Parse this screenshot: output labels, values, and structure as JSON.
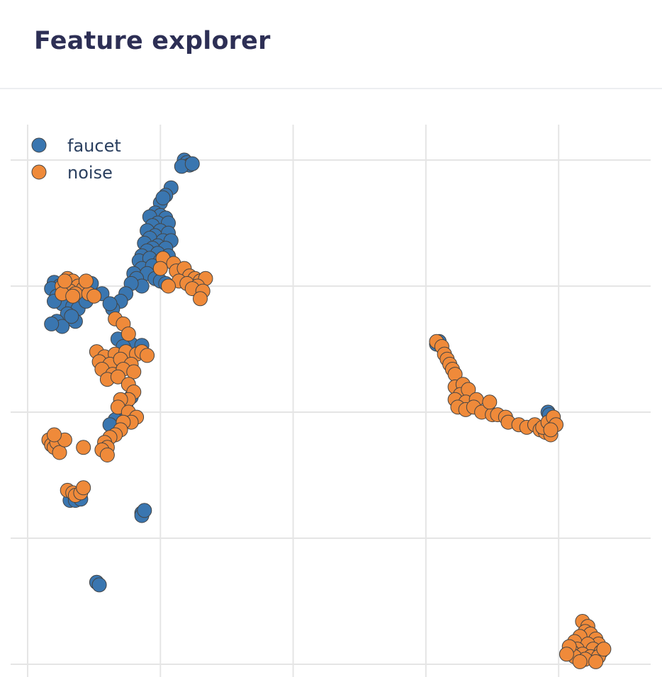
{
  "header": {
    "title": "Feature explorer"
  },
  "colors": {
    "faucet": "#3a76b0",
    "noise": "#ef8a3a",
    "marker_edge": "#444444",
    "grid": "#e5e5e5"
  },
  "chart_data": {
    "type": "scatter",
    "title": "",
    "xlabel": "",
    "ylabel": "",
    "grid": true,
    "legend_position": "top-left",
    "xlim": [
      -0.2,
      4.7
    ],
    "ylim": [
      -0.1,
      4.2
    ],
    "xticks": [
      0,
      1,
      2,
      3,
      4
    ],
    "yticks": [
      0,
      1,
      2,
      3,
      4
    ],
    "series": [
      {
        "name": "faucet",
        "color": "#3a76b0",
        "points": [
          [
            1.18,
            4.0
          ],
          [
            1.2,
            3.98
          ],
          [
            1.22,
            3.96
          ],
          [
            1.16,
            3.95
          ],
          [
            1.24,
            3.97
          ],
          [
            1.08,
            3.78
          ],
          [
            1.04,
            3.72
          ],
          [
            1.0,
            3.66
          ],
          [
            1.02,
            3.7
          ],
          [
            0.96,
            3.58
          ],
          [
            1.0,
            3.56
          ],
          [
            0.92,
            3.55
          ],
          [
            1.04,
            3.54
          ],
          [
            0.98,
            3.5
          ],
          [
            0.94,
            3.48
          ],
          [
            1.06,
            3.5
          ],
          [
            0.9,
            3.44
          ],
          [
            1.0,
            3.44
          ],
          [
            0.96,
            3.4
          ],
          [
            1.06,
            3.42
          ],
          [
            0.92,
            3.38
          ],
          [
            1.02,
            3.36
          ],
          [
            0.88,
            3.34
          ],
          [
            1.08,
            3.36
          ],
          [
            0.98,
            3.32
          ],
          [
            0.94,
            3.3
          ],
          [
            1.04,
            3.3
          ],
          [
            0.9,
            3.28
          ],
          [
            0.86,
            3.24
          ],
          [
            0.98,
            3.26
          ],
          [
            1.06,
            3.24
          ],
          [
            0.84,
            3.2
          ],
          [
            0.92,
            3.22
          ],
          [
            1.0,
            3.2
          ],
          [
            0.86,
            3.14
          ],
          [
            0.94,
            3.16
          ],
          [
            0.8,
            3.1
          ],
          [
            0.9,
            3.1
          ],
          [
            0.82,
            3.06
          ],
          [
            0.96,
            3.06
          ],
          [
            0.86,
            3.0
          ],
          [
            1.0,
            3.04
          ],
          [
            0.78,
            3.02
          ],
          [
            1.04,
            3.02
          ],
          [
            0.74,
            2.94
          ],
          [
            0.7,
            2.88
          ],
          [
            0.64,
            2.82
          ],
          [
            0.56,
            2.94
          ],
          [
            0.62,
            2.86
          ],
          [
            0.2,
            3.03
          ],
          [
            0.24,
            3.0
          ],
          [
            0.18,
            2.98
          ],
          [
            0.28,
            2.96
          ],
          [
            0.22,
            2.92
          ],
          [
            0.3,
            2.9
          ],
          [
            0.26,
            2.86
          ],
          [
            0.34,
            2.84
          ],
          [
            0.2,
            2.88
          ],
          [
            0.38,
            2.82
          ],
          [
            0.44,
            2.88
          ],
          [
            0.48,
            3.02
          ],
          [
            0.3,
            2.78
          ],
          [
            0.34,
            2.74
          ],
          [
            0.22,
            2.72
          ],
          [
            0.36,
            2.72
          ],
          [
            0.26,
            2.68
          ],
          [
            0.18,
            2.7
          ],
          [
            0.33,
            2.76
          ],
          [
            0.68,
            2.58
          ],
          [
            0.78,
            2.54
          ],
          [
            0.86,
            2.53
          ],
          [
            0.72,
            2.52
          ],
          [
            0.78,
            2.12
          ],
          [
            0.74,
            2.06
          ],
          [
            0.7,
            2.0
          ],
          [
            0.66,
            1.94
          ],
          [
            0.62,
            1.9
          ],
          [
            0.32,
            1.3
          ],
          [
            0.36,
            1.3
          ],
          [
            0.4,
            1.31
          ],
          [
            0.86,
            1.2
          ],
          [
            0.86,
            1.18
          ],
          [
            0.88,
            1.22
          ],
          [
            0.52,
            0.65
          ],
          [
            0.54,
            0.63
          ],
          [
            3.08,
            2.54
          ],
          [
            3.1,
            2.56
          ],
          [
            3.92,
            2.0
          ],
          [
            3.93,
            1.98
          ],
          [
            3.96,
            1.9
          ]
        ]
      },
      {
        "name": "noise",
        "color": "#ef8a3a",
        "points": [
          [
            1.02,
            3.22
          ],
          [
            1.1,
            3.18
          ],
          [
            1.0,
            3.14
          ],
          [
            1.12,
            3.12
          ],
          [
            1.18,
            3.14
          ],
          [
            1.22,
            3.08
          ],
          [
            1.26,
            3.06
          ],
          [
            1.3,
            3.04
          ],
          [
            1.34,
            3.06
          ],
          [
            1.14,
            3.04
          ],
          [
            1.2,
            3.02
          ],
          [
            1.28,
            3.0
          ],
          [
            1.24,
            2.98
          ],
          [
            1.32,
            2.96
          ],
          [
            1.3,
            2.9
          ],
          [
            1.06,
            3.0
          ],
          [
            0.3,
            3.06
          ],
          [
            0.34,
            3.04
          ],
          [
            0.26,
            3.0
          ],
          [
            0.38,
            3.0
          ],
          [
            0.32,
            2.96
          ],
          [
            0.42,
            2.98
          ],
          [
            0.36,
            2.94
          ],
          [
            0.46,
            2.94
          ],
          [
            0.26,
            2.94
          ],
          [
            0.34,
            2.92
          ],
          [
            0.44,
            3.04
          ],
          [
            0.28,
            3.04
          ],
          [
            0.5,
            2.92
          ],
          [
            0.66,
            2.74
          ],
          [
            0.72,
            2.7
          ],
          [
            0.76,
            2.62
          ],
          [
            0.52,
            2.48
          ],
          [
            0.58,
            2.44
          ],
          [
            0.66,
            2.46
          ],
          [
            0.74,
            2.48
          ],
          [
            0.82,
            2.46
          ],
          [
            0.86,
            2.48
          ],
          [
            0.9,
            2.45
          ],
          [
            0.54,
            2.4
          ],
          [
            0.62,
            2.38
          ],
          [
            0.7,
            2.42
          ],
          [
            0.78,
            2.38
          ],
          [
            0.56,
            2.34
          ],
          [
            0.64,
            2.3
          ],
          [
            0.72,
            2.34
          ],
          [
            0.8,
            2.32
          ],
          [
            0.6,
            2.26
          ],
          [
            0.68,
            2.28
          ],
          [
            0.76,
            2.22
          ],
          [
            0.8,
            2.16
          ],
          [
            0.76,
            2.1
          ],
          [
            0.7,
            2.1
          ],
          [
            0.68,
            2.04
          ],
          [
            0.76,
            2.0
          ],
          [
            0.82,
            1.96
          ],
          [
            0.78,
            1.92
          ],
          [
            0.72,
            1.92
          ],
          [
            0.7,
            1.86
          ],
          [
            0.66,
            1.82
          ],
          [
            0.62,
            1.8
          ],
          [
            0.58,
            1.76
          ],
          [
            0.6,
            1.72
          ],
          [
            0.56,
            1.7
          ],
          [
            0.6,
            1.66
          ],
          [
            0.16,
            1.78
          ],
          [
            0.18,
            1.74
          ],
          [
            0.2,
            1.72
          ],
          [
            0.22,
            1.76
          ],
          [
            0.24,
            1.68
          ],
          [
            0.28,
            1.78
          ],
          [
            0.2,
            1.82
          ],
          [
            0.42,
            1.72
          ],
          [
            0.3,
            1.38
          ],
          [
            0.34,
            1.36
          ],
          [
            0.36,
            1.34
          ],
          [
            0.4,
            1.36
          ],
          [
            0.42,
            1.4
          ],
          [
            3.08,
            2.56
          ],
          [
            3.12,
            2.52
          ],
          [
            3.14,
            2.46
          ],
          [
            3.16,
            2.42
          ],
          [
            3.18,
            2.38
          ],
          [
            3.2,
            2.34
          ],
          [
            3.22,
            2.3
          ],
          [
            3.22,
            2.2
          ],
          [
            3.28,
            2.22
          ],
          [
            3.26,
            2.14
          ],
          [
            3.32,
            2.18
          ],
          [
            3.22,
            2.1
          ],
          [
            3.3,
            2.08
          ],
          [
            3.38,
            2.1
          ],
          [
            3.24,
            2.04
          ],
          [
            3.3,
            2.02
          ],
          [
            3.36,
            2.04
          ],
          [
            3.42,
            2.0
          ],
          [
            3.5,
            1.98
          ],
          [
            3.48,
            2.08
          ],
          [
            3.54,
            1.98
          ],
          [
            3.6,
            1.96
          ],
          [
            3.62,
            1.92
          ],
          [
            3.7,
            1.9
          ],
          [
            3.76,
            1.88
          ],
          [
            3.82,
            1.9
          ],
          [
            3.86,
            1.86
          ],
          [
            3.9,
            1.84
          ],
          [
            3.94,
            1.82
          ],
          [
            3.88,
            1.88
          ],
          [
            3.92,
            1.92
          ],
          [
            3.96,
            1.96
          ],
          [
            3.98,
            1.9
          ],
          [
            3.94,
            1.86
          ],
          [
            4.18,
            0.34
          ],
          [
            4.22,
            0.3
          ],
          [
            4.2,
            0.26
          ],
          [
            4.24,
            0.24
          ],
          [
            4.16,
            0.22
          ],
          [
            4.28,
            0.2
          ],
          [
            4.12,
            0.18
          ],
          [
            4.3,
            0.16
          ],
          [
            4.22,
            0.16
          ],
          [
            4.14,
            0.12
          ],
          [
            4.26,
            0.12
          ],
          [
            4.32,
            0.1
          ],
          [
            4.1,
            0.1
          ],
          [
            4.18,
            0.08
          ],
          [
            4.24,
            0.06
          ],
          [
            4.3,
            0.06
          ],
          [
            4.34,
            0.12
          ],
          [
            4.12,
            0.06
          ],
          [
            4.2,
            0.04
          ],
          [
            4.28,
            0.02
          ],
          [
            4.16,
            0.02
          ],
          [
            4.08,
            0.14
          ],
          [
            4.06,
            0.08
          ]
        ]
      }
    ]
  }
}
